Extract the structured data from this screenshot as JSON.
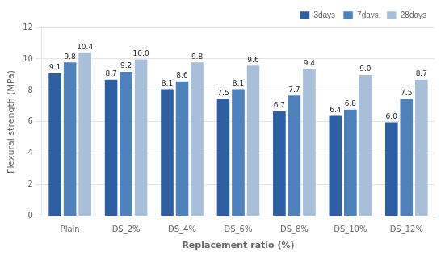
{
  "chart_data": {
    "type": "bar",
    "categories": [
      "Plain",
      "DS_2%",
      "DS_4%",
      "DS_6%",
      "DS_8%",
      "DS_10%",
      "DS_12%"
    ],
    "series": [
      {
        "name": "3days",
        "color": "#2e5fa3",
        "values": [
          9.1,
          8.7,
          8.1,
          7.5,
          6.7,
          6.4,
          6.0
        ],
        "value_labels": [
          "9.1",
          "8.7",
          "8.1",
          "7.5",
          "6.7",
          "6.4",
          "6.0"
        ]
      },
      {
        "name": "7days",
        "color": "#4f81bd",
        "values": [
          9.8,
          9.2,
          8.6,
          8.1,
          7.7,
          6.8,
          7.5
        ],
        "value_labels": [
          "9.8",
          "9.2",
          "8.6",
          "8.1",
          "7.7",
          "6.8",
          "7.5"
        ]
      },
      {
        "name": "28days",
        "color": "#a8bfda",
        "values": [
          10.4,
          10.0,
          9.8,
          9.6,
          9.4,
          9.0,
          8.7
        ],
        "value_labels": [
          "10.4",
          "10.0",
          "9.8",
          "9.6",
          "9.4",
          "9.0",
          "8.7"
        ]
      }
    ],
    "xlabel": "Replacement ratio (%)",
    "ylabel": "Flexural strength (MPa)",
    "ylim": [
      0,
      12
    ],
    "yticks": [
      0,
      2,
      4,
      6,
      8,
      10,
      12
    ],
    "grid": true,
    "legend": "upper right",
    "data_labels": true
  }
}
